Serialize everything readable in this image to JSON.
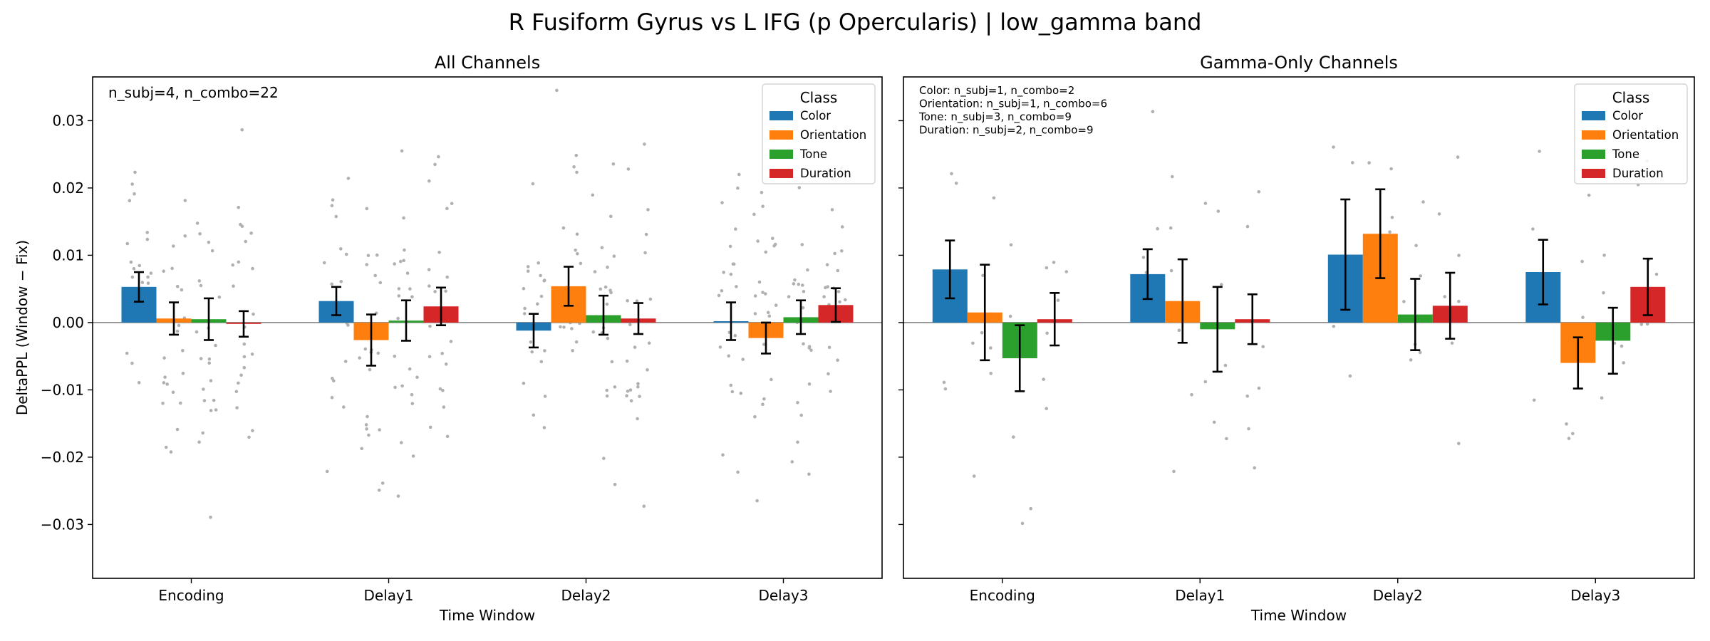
{
  "figure": {
    "title": "R Fusiform Gyrus vs L IFG (p Opercularis)  |  low_gamma band"
  },
  "colors": {
    "Color": "#1f77b4",
    "Orientation": "#ff7f0e",
    "Tone": "#2ca02c",
    "Duration": "#d62728",
    "scatter_points": "#b0b0b0",
    "errorbar": "#000000"
  },
  "chart_data": [
    {
      "type": "bar",
      "title": "All Channels",
      "xlabel": "Time Window",
      "ylabel": "DeltaPPL (Window − Fix)",
      "ylim": [
        -0.038,
        0.0365
      ],
      "yticks": [
        0.03,
        0.02,
        0.01,
        0.0,
        -0.01,
        -0.02,
        -0.03
      ],
      "ytick_labels": [
        "0.03",
        "0.02",
        "0.01",
        "0.00",
        "−0.01",
        "−0.02",
        "−0.03"
      ],
      "categories": [
        "Encoding",
        "Delay1",
        "Delay2",
        "Delay3"
      ],
      "annotation": [
        "n_subj=4, n_combo=22"
      ],
      "legend": {
        "title": "Class",
        "position": "top-right",
        "entries": [
          "Color",
          "Orientation",
          "Tone",
          "Duration"
        ]
      },
      "series": [
        {
          "name": "Color",
          "values": [
            0.0053,
            0.0032,
            -0.0012,
            0.0002
          ],
          "errors": [
            0.0022,
            0.0021,
            0.0025,
            0.0028
          ]
        },
        {
          "name": "Orientation",
          "values": [
            0.0006,
            -0.0026,
            0.0054,
            -0.0023
          ],
          "errors": [
            0.0024,
            0.0038,
            0.0029,
            0.0023
          ]
        },
        {
          "name": "Tone",
          "values": [
            0.0005,
            0.0003,
            0.0011,
            0.0008
          ],
          "errors": [
            0.0031,
            0.003,
            0.0029,
            0.0025
          ]
        },
        {
          "name": "Duration",
          "values": [
            -0.0002,
            0.0024,
            0.0006,
            0.0026
          ],
          "errors": [
            0.0019,
            0.0028,
            0.0023,
            0.0025
          ]
        }
      ]
    },
    {
      "type": "bar",
      "title": "Gamma-Only Channels",
      "xlabel": "Time Window",
      "ylim": [
        -0.038,
        0.0365
      ],
      "categories": [
        "Encoding",
        "Delay1",
        "Delay2",
        "Delay3"
      ],
      "annotation": [
        "Color: n_subj=1, n_combo=2",
        "Orientation: n_subj=1, n_combo=6",
        "Tone: n_subj=3, n_combo=9",
        "Duration: n_subj=2, n_combo=9"
      ],
      "legend": {
        "title": "Class",
        "position": "top-right",
        "entries": [
          "Color",
          "Orientation",
          "Tone",
          "Duration"
        ]
      },
      "series": [
        {
          "name": "Color",
          "values": [
            0.0079,
            0.0072,
            0.0101,
            0.0075
          ],
          "errors": [
            0.0043,
            0.0037,
            0.0082,
            0.0048
          ]
        },
        {
          "name": "Orientation",
          "values": [
            0.0015,
            0.0032,
            0.0132,
            -0.006
          ],
          "errors": [
            0.0071,
            0.0062,
            0.0066,
            0.0038
          ]
        },
        {
          "name": "Tone",
          "values": [
            -0.0053,
            -0.001,
            0.0012,
            -0.0027
          ],
          "errors": [
            0.0049,
            0.0063,
            0.0053,
            0.0049
          ]
        },
        {
          "name": "Duration",
          "values": [
            0.0005,
            0.0005,
            0.0025,
            0.0053
          ],
          "errors": [
            0.0039,
            0.0037,
            0.0049,
            0.0042
          ]
        }
      ]
    }
  ]
}
